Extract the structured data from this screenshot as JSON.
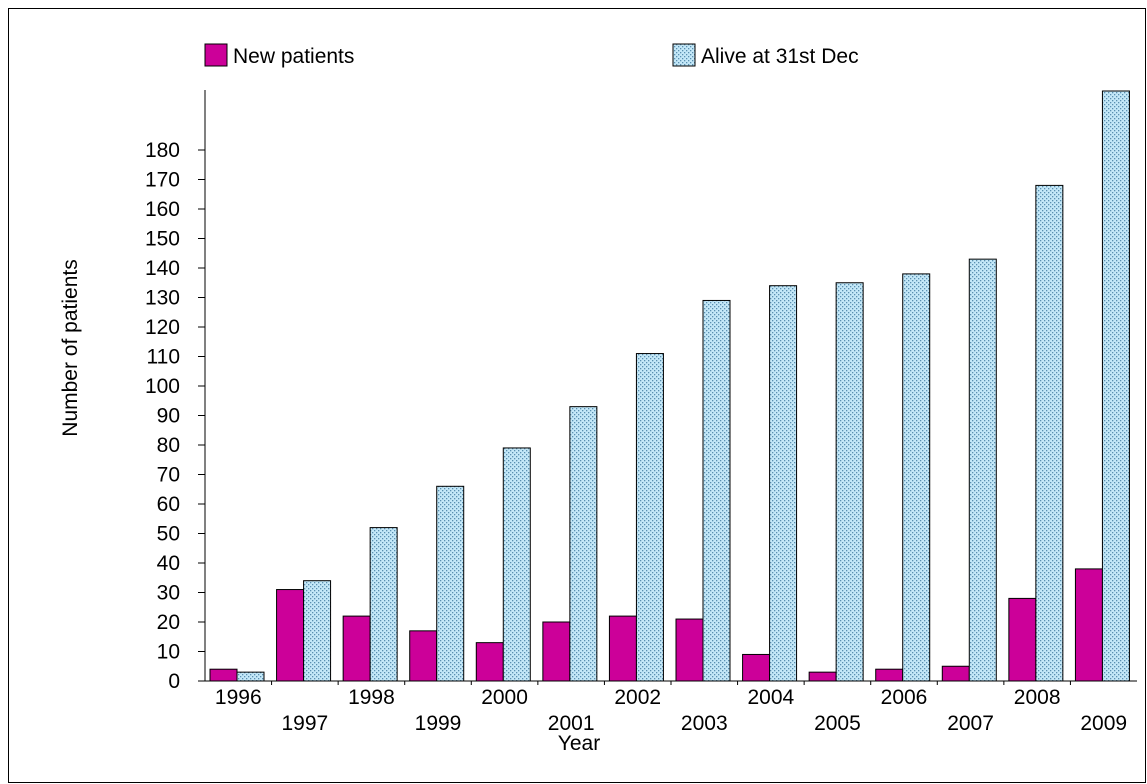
{
  "chart_data": {
    "type": "bar",
    "xlabel": "Year",
    "ylabel": "Number of patients",
    "ylim": [
      0,
      200
    ],
    "y_ticks": [
      0,
      10,
      20,
      30,
      40,
      50,
      60,
      70,
      80,
      90,
      100,
      110,
      120,
      130,
      140,
      150,
      160,
      170,
      180
    ],
    "categories": [
      "1996",
      "1997",
      "1998",
      "1999",
      "2000",
      "2001",
      "2002",
      "2003",
      "2004",
      "2005",
      "2006",
      "2007",
      "2008",
      "2009"
    ],
    "series": [
      {
        "name": "New patients",
        "color": "#cc0099",
        "values": [
          4,
          31,
          22,
          17,
          13,
          20,
          22,
          21,
          9,
          3,
          4,
          5,
          28,
          38
        ]
      },
      {
        "name": "Alive at 31st Dec",
        "color": "#bfe6f7",
        "values": [
          3,
          34,
          52,
          66,
          79,
          93,
          111,
          129,
          134,
          135,
          138,
          143,
          168,
          200
        ]
      }
    ],
    "legend_position": "top",
    "grid": false
  }
}
